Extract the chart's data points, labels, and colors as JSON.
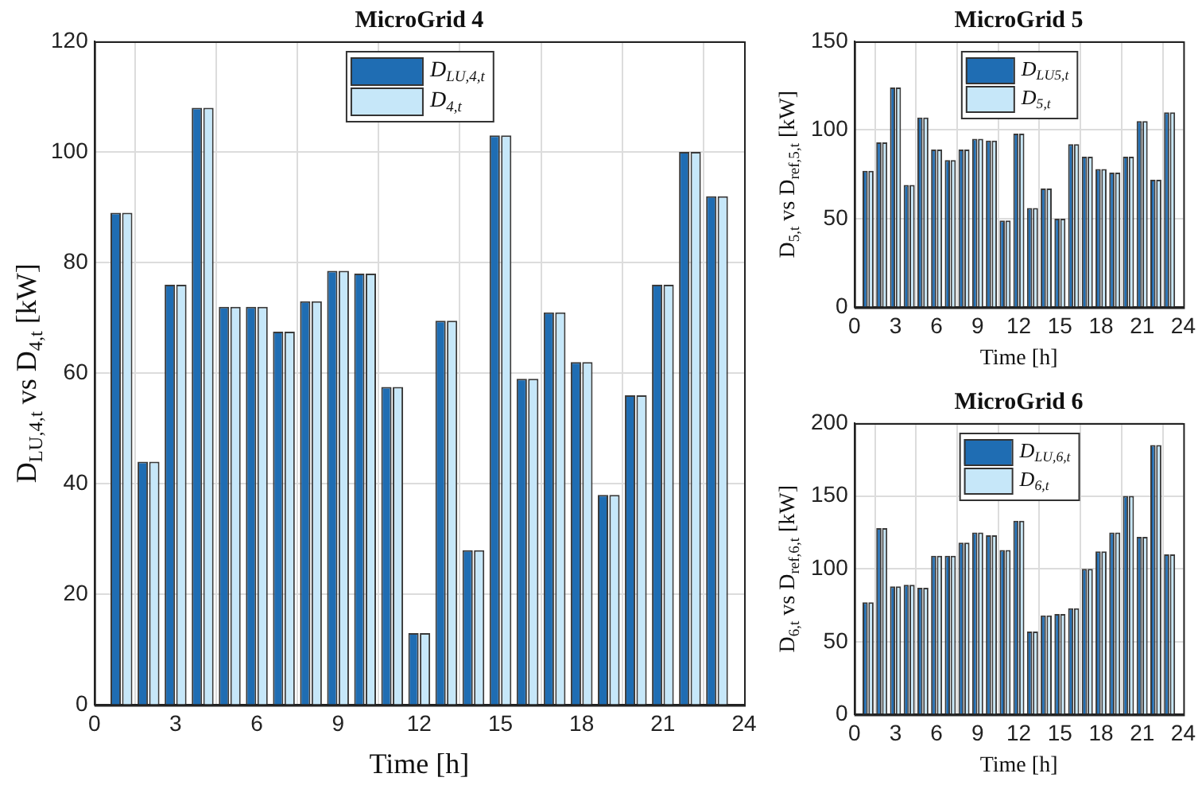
{
  "chart_data": [
    {
      "type": "bar",
      "title": "MicroGrid 4",
      "xlabel": "Time [h]",
      "ylabel": "D$_{LU,4,t}$ vs D$_{4,t}$ [kW]",
      "x": [
        1,
        2,
        3,
        4,
        5,
        6,
        7,
        8,
        9,
        10,
        11,
        12,
        13,
        14,
        15,
        16,
        17,
        18,
        19,
        20,
        21,
        22,
        23
      ],
      "series": [
        {
          "name": "D$_{LU,4,t}$",
          "color": "#1f6db3",
          "values": [
            89,
            44,
            76,
            108,
            72,
            72,
            67.5,
            73,
            78.5,
            78,
            57.5,
            13,
            69.5,
            28,
            103,
            59,
            71,
            62,
            38,
            56,
            76,
            100,
            92
          ]
        },
        {
          "name": "D$_{4,t}$",
          "color": "#c6e7f9",
          "values": [
            89,
            44,
            76,
            108,
            72,
            72,
            67.5,
            73,
            78.5,
            78,
            57.5,
            13,
            69.5,
            28,
            103,
            59,
            71,
            62,
            38,
            56,
            76,
            100,
            92
          ]
        }
      ],
      "xlim": [
        0,
        24
      ],
      "xticks": [
        0,
        3,
        6,
        9,
        12,
        15,
        18,
        21,
        24
      ],
      "ylim": [
        0,
        120
      ],
      "yticks": [
        0,
        20,
        40,
        60,
        80,
        100,
        120
      ],
      "grid": true,
      "legend": "top"
    },
    {
      "type": "bar",
      "title": "MicroGrid 5",
      "xlabel": "Time [h]",
      "ylabel": "D$_{5,t}$ vs D$_{ref,5,t}$ [kW]",
      "x": [
        1,
        2,
        3,
        4,
        5,
        6,
        7,
        8,
        9,
        10,
        11,
        12,
        13,
        14,
        15,
        16,
        17,
        18,
        19,
        20,
        21,
        22,
        23
      ],
      "series": [
        {
          "name": "D$_{LU5,t}$",
          "color": "#1f6db3",
          "values": [
            77,
            93,
            124,
            69,
            107,
            89,
            83,
            89,
            95,
            94,
            49,
            98,
            56,
            67,
            50,
            92,
            85,
            78,
            76,
            85,
            105,
            72,
            110
          ]
        },
        {
          "name": "D$_{5,t}$",
          "color": "#c6e7f9",
          "values": [
            77,
            93,
            124,
            69,
            107,
            89,
            83,
            89,
            95,
            94,
            49,
            98,
            56,
            67,
            50,
            92,
            85,
            78,
            76,
            85,
            105,
            72,
            110
          ]
        }
      ],
      "xlim": [
        0,
        24
      ],
      "xticks": [
        0,
        3,
        6,
        9,
        12,
        15,
        18,
        21,
        24
      ],
      "ylim": [
        0,
        150
      ],
      "yticks": [
        0,
        50,
        100,
        150
      ],
      "grid": true,
      "legend": "top"
    },
    {
      "type": "bar",
      "title": "MicroGrid 6",
      "xlabel": "Time [h]",
      "ylabel": "D$_{6,t}$ vs D$_{ref,6,t}$ [kW]",
      "x": [
        1,
        2,
        3,
        4,
        5,
        6,
        7,
        8,
        9,
        10,
        11,
        12,
        13,
        14,
        15,
        16,
        17,
        18,
        19,
        20,
        21,
        22,
        23
      ],
      "series": [
        {
          "name": "D$_{LU,6,t}$",
          "color": "#1f6db3",
          "values": [
            77,
            128,
            88,
            89,
            87,
            109,
            109,
            118,
            125,
            123,
            113,
            133,
            57,
            68,
            69,
            73,
            100,
            112,
            125,
            150,
            122,
            185,
            110
          ]
        },
        {
          "name": "D$_{6,t}$",
          "color": "#c6e7f9",
          "values": [
            77,
            128,
            88,
            89,
            87,
            109,
            109,
            118,
            125,
            123,
            113,
            133,
            57,
            68,
            69,
            73,
            100,
            112,
            125,
            150,
            122,
            185,
            110
          ]
        }
      ],
      "xlim": [
        0,
        24
      ],
      "xticks": [
        0,
        3,
        6,
        9,
        12,
        15,
        18,
        21,
        24
      ],
      "ylim": [
        0,
        200
      ],
      "yticks": [
        0,
        50,
        100,
        150,
        200
      ],
      "grid": true,
      "legend": "top"
    }
  ]
}
